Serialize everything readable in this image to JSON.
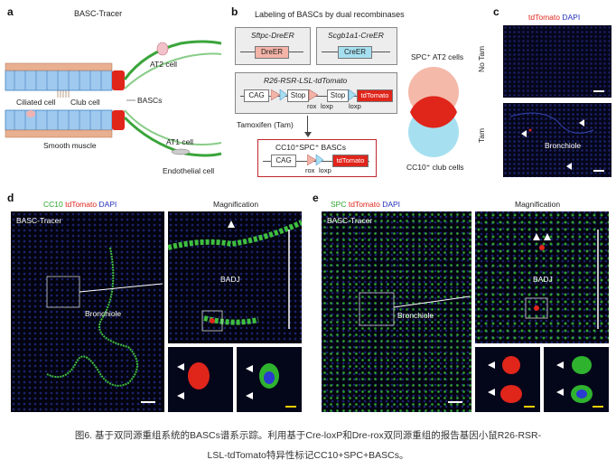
{
  "panel_a": {
    "label": "a",
    "title": "BASC-Tracer",
    "at2": "AT2 cell",
    "ciliated": "Ciliated cell",
    "club": "Club cell",
    "bascs": "BASCs",
    "smooth": "Smooth muscle",
    "at1": "AT1 cell",
    "endothelial": "Endothelial cell"
  },
  "panel_b": {
    "label": "b",
    "title": "Labeling of BASCs by dual recombinases",
    "sftpc": "Sftpc-DreER",
    "dreer": "DreER",
    "scgb": "Scgb1a1-CreER",
    "creer": "CreER",
    "r26": "R26-RSR-LSL-tdTomato",
    "cag": "CAG",
    "stop": "Stop",
    "rox": "rox",
    "loxp": "loxp",
    "tdtomato": "tdTomato",
    "tamoxifen": "Tamoxifen (Tam)",
    "result": "CC10⁺SPC⁺ BASCs",
    "cag2": "CAG",
    "tdtomato2": "tdTomato",
    "rox2": "rox",
    "loxp2": "loxp",
    "spc_at2": "SPC⁺ AT2 cells",
    "cc10_club": "CC10⁺ club cells"
  },
  "panel_c": {
    "label": "c",
    "hdr_red": "tdTomato",
    "hdr_blue": "DAPI",
    "row1": "No Tam",
    "row2": "Tam",
    "bronchiole": "Bronchiole"
  },
  "panel_d": {
    "label": "d",
    "hdr_green": "CC10",
    "hdr_red": "tdTomato",
    "hdr_blue": "DAPI",
    "tracer": "BASC-Tracer",
    "bronchiole": "Bronchiole",
    "magnification": "Magnification",
    "badj": "BADJ"
  },
  "panel_e": {
    "label": "e",
    "hdr_green": "SPC",
    "hdr_red": "tdTomato",
    "hdr_blue": "DAPI",
    "tracer": "BASC-Tracer",
    "bronchiole": "Bronchiole",
    "magnification": "Magnification",
    "badj": "BADJ"
  },
  "caption": {
    "line1": "图6. 基于双同源重组系统的BASCs谱系示踪。利用基于Cre-loxP和Dre-rox双同源重组的报告基因小鼠R26-RSR-",
    "line2": "LSL-tdTomato特异性标记CC10+SPC+BASCs。"
  }
}
